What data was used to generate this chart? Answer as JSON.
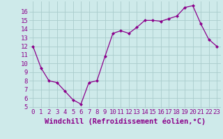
{
  "x": [
    0,
    1,
    2,
    3,
    4,
    5,
    6,
    7,
    8,
    9,
    10,
    11,
    12,
    13,
    14,
    15,
    16,
    17,
    18,
    19,
    20,
    21,
    22,
    23
  ],
  "y": [
    12,
    9.5,
    8,
    7.8,
    6.8,
    5.8,
    5.3,
    7.8,
    8,
    10.8,
    13.5,
    13.8,
    13.5,
    14.2,
    15.0,
    15.0,
    14.9,
    15.2,
    15.5,
    16.5,
    16.7,
    14.6,
    12.8,
    12.0
  ],
  "line_color": "#8B008B",
  "marker": "D",
  "marker_size": 2,
  "bg_color": "#ceeaea",
  "grid_color": "#aacccc",
  "xlabel": "Windchill (Refroidissement éolien,°C)",
  "xlim": [
    -0.5,
    23.5
  ],
  "ylim": [
    4.8,
    17.2
  ],
  "yticks": [
    5,
    6,
    7,
    8,
    9,
    10,
    11,
    12,
    13,
    14,
    15,
    16
  ],
  "xticks": [
    0,
    1,
    2,
    3,
    4,
    5,
    6,
    7,
    8,
    9,
    10,
    11,
    12,
    13,
    14,
    15,
    16,
    17,
    18,
    19,
    20,
    21,
    22,
    23
  ],
  "tick_fontsize": 6.5,
  "xlabel_fontsize": 7.5
}
